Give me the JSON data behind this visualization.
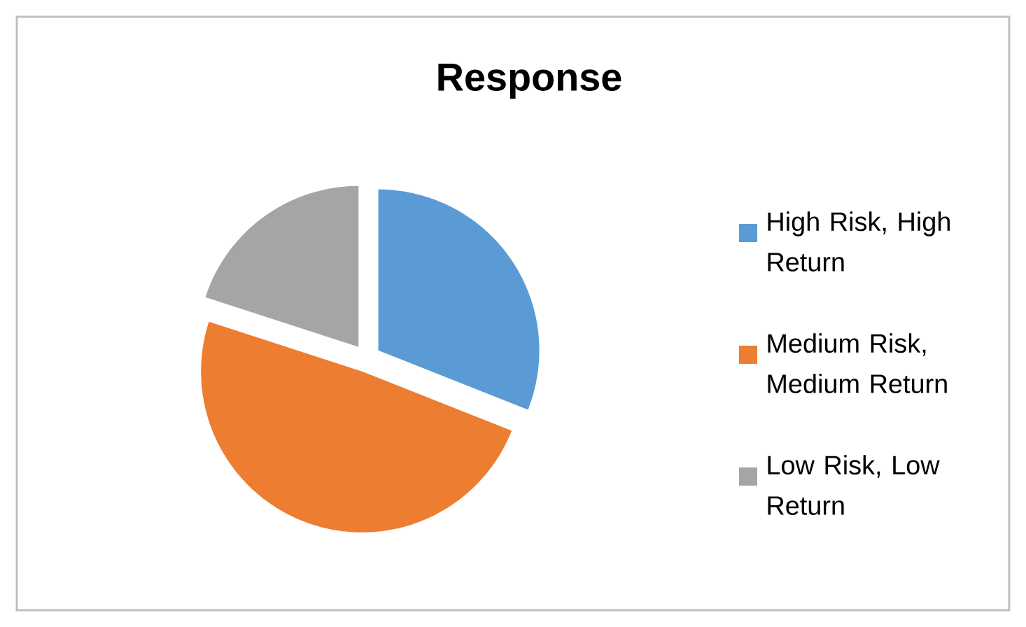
{
  "chart_data": {
    "type": "pie",
    "title": "Response",
    "categories": [
      "High Risk, High Return",
      "Medium Risk, Medium Return",
      "Low Risk, Low Return"
    ],
    "values": [
      31,
      49,
      20
    ],
    "colors": [
      "#5b9bd5",
      "#ed7d31",
      "#a5a5a5"
    ],
    "legend": "right"
  }
}
